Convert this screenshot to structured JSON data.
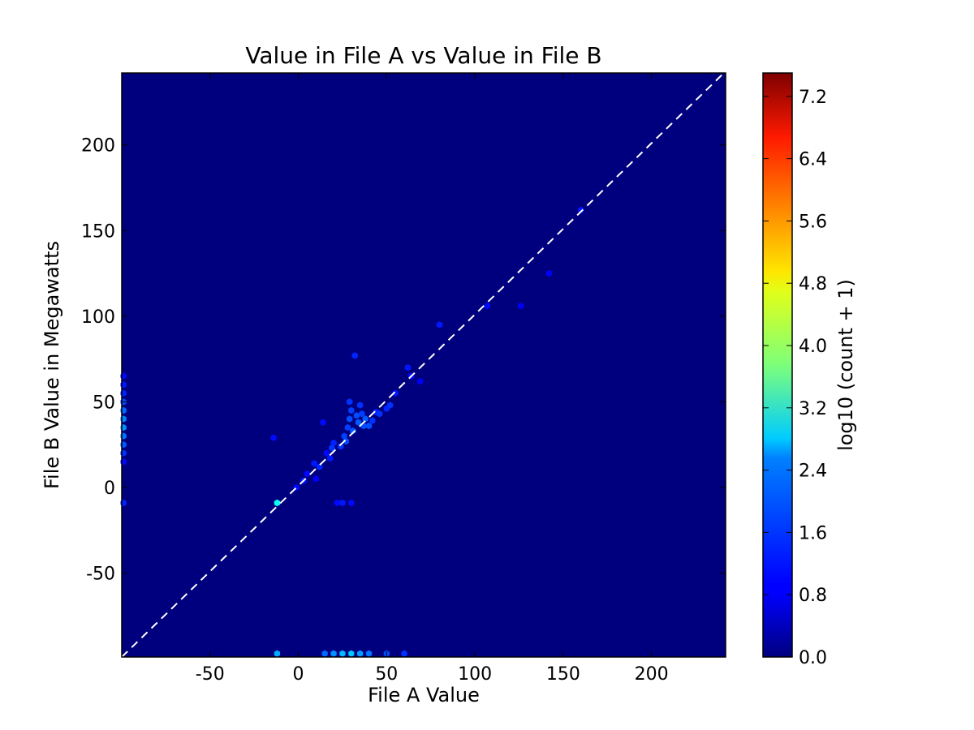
{
  "chart_data": {
    "type": "heatmap",
    "title": "Value in File A vs Value in File B",
    "xlabel": "File A Value",
    "ylabel": "File B Value in Megawatts",
    "xlim": [
      -100,
      242
    ],
    "ylim": [
      -99,
      242
    ],
    "xticks": [
      -50,
      0,
      50,
      100,
      150,
      200
    ],
    "yticks": [
      -50,
      0,
      50,
      100,
      150,
      200
    ],
    "xtick_labels": [
      "-50",
      "0",
      "50",
      "100",
      "150",
      "200"
    ],
    "ytick_labels": [
      "-50",
      "0",
      "50",
      "100",
      "150",
      "200"
    ],
    "background_color": "#00007f",
    "reference_line": {
      "style": "dashed",
      "color": "#ffffff",
      "points": [
        [
          -100,
          -99
        ],
        [
          242,
          243
        ]
      ]
    },
    "colorbar": {
      "label": "log10 (count + 1)",
      "min": 0.0,
      "max": 7.5,
      "ticks": [
        "0.0",
        "0.8",
        "1.6",
        "2.4",
        "3.2",
        "4.0",
        "4.8",
        "5.6",
        "6.4",
        "7.2"
      ],
      "colormap": "jet"
    },
    "cells": [
      {
        "x": -99,
        "y": 65,
        "v": 1.0
      },
      {
        "x": -99,
        "y": 60,
        "v": 1.1
      },
      {
        "x": -99,
        "y": 55,
        "v": 1.2
      },
      {
        "x": -99,
        "y": 50,
        "v": 1.5
      },
      {
        "x": -99,
        "y": 45,
        "v": 1.7
      },
      {
        "x": -99,
        "y": 40,
        "v": 1.9
      },
      {
        "x": -99,
        "y": 35,
        "v": 2.0
      },
      {
        "x": -99,
        "y": 30,
        "v": 1.8
      },
      {
        "x": -99,
        "y": 25,
        "v": 1.6
      },
      {
        "x": -99,
        "y": 20,
        "v": 1.3
      },
      {
        "x": -99,
        "y": 15,
        "v": 1.0
      },
      {
        "x": -99,
        "y": -9,
        "v": 1.2
      },
      {
        "x": -14,
        "y": 29,
        "v": 1.0
      },
      {
        "x": -12,
        "y": -9,
        "v": 2.9
      },
      {
        "x": -1,
        "y": 0,
        "v": 1.0
      },
      {
        "x": 3,
        "y": 4,
        "v": 1.1
      },
      {
        "x": 5,
        "y": 8,
        "v": 1.0
      },
      {
        "x": 9,
        "y": 14,
        "v": 1.1
      },
      {
        "x": 10,
        "y": 5,
        "v": 0.9
      },
      {
        "x": 12,
        "y": 12,
        "v": 1.2
      },
      {
        "x": 14,
        "y": 38,
        "v": 1.0
      },
      {
        "x": 16,
        "y": 20,
        "v": 1.0
      },
      {
        "x": 18,
        "y": 17,
        "v": 1.1
      },
      {
        "x": 19,
        "y": 23,
        "v": 1.3
      },
      {
        "x": 20,
        "y": 26,
        "v": 1.2
      },
      {
        "x": 22,
        "y": -9,
        "v": 1.0
      },
      {
        "x": 24,
        "y": 24,
        "v": 1.3
      },
      {
        "x": 25,
        "y": -9,
        "v": 1.1
      },
      {
        "x": 26,
        "y": 30,
        "v": 1.4
      },
      {
        "x": 27,
        "y": 27,
        "v": 1.5
      },
      {
        "x": 28,
        "y": 35,
        "v": 1.4
      },
      {
        "x": 29,
        "y": 40,
        "v": 1.5
      },
      {
        "x": 29,
        "y": 50,
        "v": 1.3
      },
      {
        "x": 30,
        "y": -9,
        "v": 1.0
      },
      {
        "x": 30,
        "y": 45,
        "v": 1.4
      },
      {
        "x": 31,
        "y": 33,
        "v": 1.6
      },
      {
        "x": 32,
        "y": 77,
        "v": 1.2
      },
      {
        "x": 33,
        "y": 42,
        "v": 1.5
      },
      {
        "x": 34,
        "y": 38,
        "v": 1.6
      },
      {
        "x": 35,
        "y": 48,
        "v": 1.3
      },
      {
        "x": 36,
        "y": 43,
        "v": 1.4
      },
      {
        "x": 37,
        "y": 36,
        "v": 1.5
      },
      {
        "x": 38,
        "y": 40,
        "v": 1.6
      },
      {
        "x": 40,
        "y": 36,
        "v": 1.5
      },
      {
        "x": 42,
        "y": 39,
        "v": 1.3
      },
      {
        "x": 44,
        "y": 44,
        "v": 1.2
      },
      {
        "x": 46,
        "y": 43,
        "v": 1.3
      },
      {
        "x": 50,
        "y": 46,
        "v": 1.2
      },
      {
        "x": 52,
        "y": 48,
        "v": 1.3
      },
      {
        "x": 55,
        "y": 55,
        "v": 1.1
      },
      {
        "x": 62,
        "y": 70,
        "v": 1.1
      },
      {
        "x": 64,
        "y": 65,
        "v": 1.0
      },
      {
        "x": 69,
        "y": 62,
        "v": 0.9
      },
      {
        "x": 80,
        "y": 95,
        "v": 1.1
      },
      {
        "x": 107,
        "y": 106,
        "v": 1.0
      },
      {
        "x": 126,
        "y": 106,
        "v": 0.9
      },
      {
        "x": 142,
        "y": 125,
        "v": 0.9
      },
      {
        "x": 160,
        "y": 162,
        "v": 1.1
      },
      {
        "x": -12,
        "y": -97,
        "v": 2.2
      },
      {
        "x": 15,
        "y": -97,
        "v": 1.7
      },
      {
        "x": 20,
        "y": -97,
        "v": 2.0
      },
      {
        "x": 25,
        "y": -97,
        "v": 2.3
      },
      {
        "x": 30,
        "y": -97,
        "v": 2.4
      },
      {
        "x": 35,
        "y": -97,
        "v": 2.1
      },
      {
        "x": 40,
        "y": -97,
        "v": 1.8
      },
      {
        "x": 50,
        "y": -97,
        "v": 1.5
      },
      {
        "x": 60,
        "y": -97,
        "v": 1.3
      }
    ]
  }
}
